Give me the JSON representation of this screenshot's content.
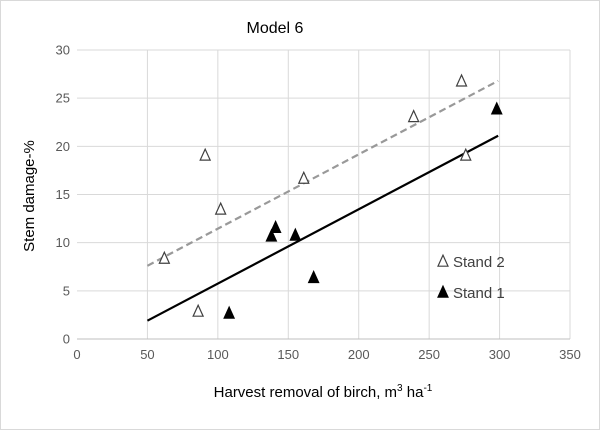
{
  "chart_data": {
    "type": "scatter",
    "title": "Model 6",
    "xlabel": {
      "text": "Harvest removal of birch, m",
      "sup1": "3",
      "mid": " ha",
      "sup2": "-1"
    },
    "ylabel": "Stem damage-%",
    "xlim": [
      0,
      350
    ],
    "ylim": [
      0,
      30
    ],
    "xticks": [
      0,
      50,
      100,
      150,
      200,
      250,
      300,
      350
    ],
    "yticks": [
      0,
      5,
      10,
      15,
      20,
      25,
      30
    ],
    "grid": true,
    "legend_position": "right",
    "series": [
      {
        "name": "Stand 2",
        "marker": "open-triangle",
        "color": "#404040",
        "points": [
          [
            62,
            8.3
          ],
          [
            86,
            2.8
          ],
          [
            91,
            19
          ],
          [
            102,
            13.4
          ],
          [
            161,
            16.6
          ],
          [
            239,
            23
          ],
          [
            273,
            26.7
          ],
          [
            276,
            19
          ]
        ],
        "trendline": {
          "x": [
            50,
            299
          ],
          "y": [
            7.6,
            26.8
          ],
          "style": "dashed",
          "color": "#999999"
        }
      },
      {
        "name": "Stand 1",
        "marker": "filled-triangle",
        "color": "#000000",
        "points": [
          [
            108,
            2.6
          ],
          [
            138,
            10.6
          ],
          [
            141,
            11.5
          ],
          [
            155,
            10.7
          ],
          [
            168,
            6.3
          ],
          [
            298,
            23.8
          ]
        ],
        "trendline": {
          "x": [
            50,
            299
          ],
          "y": [
            1.9,
            21.1
          ],
          "style": "solid",
          "color": "#000000"
        }
      }
    ]
  }
}
